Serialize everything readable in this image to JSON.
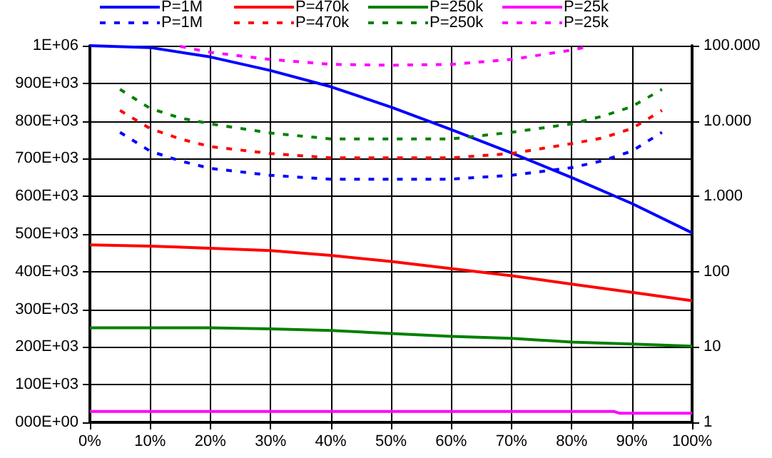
{
  "chart_data": {
    "type": "line",
    "x": [
      0,
      10,
      20,
      30,
      40,
      50,
      60,
      70,
      80,
      90,
      100
    ],
    "series": [
      {
        "name": "P=1M",
        "color": "#0000ff",
        "line_style": "solid",
        "values": [
          1000000,
          995000,
          970000,
          934000,
          891000,
          837000,
          777000,
          715000,
          650000,
          581000,
          503000
        ]
      },
      {
        "name": "P=470k",
        "color": "#ff0000",
        "line_style": "solid",
        "values": [
          471000,
          468000,
          462000,
          456000,
          443000,
          427000,
          408000,
          389000,
          367000,
          345000,
          323000
        ]
      },
      {
        "name": "P=250k",
        "color": "#008000",
        "line_style": "solid",
        "values": [
          251000,
          251000,
          251000,
          248000,
          244000,
          236000,
          228000,
          223000,
          213000,
          208000,
          202000
        ]
      },
      {
        "name": "P=25k",
        "color": "#ff00ff",
        "line_style": "solid",
        "x": [
          0,
          87,
          88,
          100
        ],
        "values": [
          29000,
          29000,
          24000,
          24000
        ]
      },
      {
        "name": "P=1M",
        "color": "#0000ff",
        "line_style": "dashed",
        "axis": "y2",
        "x": [
          5,
          10,
          15,
          20,
          30,
          40,
          50,
          60,
          70,
          80,
          85,
          90,
          95
        ],
        "values": [
          7080,
          3980,
          2950,
          2350,
          1900,
          1690,
          1690,
          1690,
          1900,
          2400,
          2950,
          3980,
          7080
        ]
      },
      {
        "name": "P=470k",
        "color": "#ff0000",
        "line_style": "dashed",
        "axis": "y2",
        "x": [
          5,
          10,
          15,
          20,
          30,
          40,
          50,
          60,
          70,
          80,
          85,
          90,
          95
        ],
        "values": [
          13800,
          7940,
          5780,
          4570,
          3700,
          3240,
          3240,
          3240,
          3700,
          5000,
          5920,
          7940,
          13800
        ]
      },
      {
        "name": "P=250k",
        "color": "#008000",
        "line_style": "dashed",
        "axis": "y2",
        "x": [
          5,
          10,
          15,
          20,
          30,
          40,
          50,
          60,
          70,
          80,
          85,
          90,
          95
        ],
        "values": [
          26300,
          14700,
          10960,
          9170,
          6920,
          5780,
          5780,
          5780,
          7080,
          9170,
          11500,
          15500,
          26300
        ]
      },
      {
        "name": "P=25k",
        "color": "#ff00ff",
        "line_style": "dashed",
        "axis": "y2",
        "x": [
          15,
          20,
          30,
          40,
          50,
          60,
          70,
          80,
          83
        ],
        "values": [
          98000,
          81500,
          65600,
          56500,
          55000,
          56500,
          65600,
          87500,
          98000
        ]
      }
    ],
    "xlim": [
      0,
      100
    ],
    "xticks": [
      {
        "value": 0,
        "label": "0%"
      },
      {
        "value": 10,
        "label": "10%"
      },
      {
        "value": 20,
        "label": "20%"
      },
      {
        "value": 30,
        "label": "30%"
      },
      {
        "value": 40,
        "label": "40%"
      },
      {
        "value": 50,
        "label": "50%"
      },
      {
        "value": 60,
        "label": "60%"
      },
      {
        "value": 70,
        "label": "70%"
      },
      {
        "value": 80,
        "label": "80%"
      },
      {
        "value": 90,
        "label": "90%"
      },
      {
        "value": 100,
        "label": "100%"
      }
    ],
    "ylim": [
      0,
      1000000
    ],
    "yticks": [
      {
        "value": 0,
        "label": "000E+00"
      },
      {
        "value": 100000,
        "label": "100E+03"
      },
      {
        "value": 200000,
        "label": "200E+03"
      },
      {
        "value": 300000,
        "label": "300E+03"
      },
      {
        "value": 400000,
        "label": "400E+03"
      },
      {
        "value": 500000,
        "label": "500E+03"
      },
      {
        "value": 600000,
        "label": "600E+03"
      },
      {
        "value": 700000,
        "label": "700E+03"
      },
      {
        "value": 800000,
        "label": "800E+03"
      },
      {
        "value": 900000,
        "label": "900E+03"
      },
      {
        "value": 1000000,
        "label": "1E+06"
      }
    ],
    "y2lim": [
      1,
      100000
    ],
    "y2ticks": [
      {
        "value": 1,
        "label": "1"
      },
      {
        "value": 10,
        "label": "10"
      },
      {
        "value": 100,
        "label": "100"
      },
      {
        "value": 1000,
        "label": "1.000"
      },
      {
        "value": 10000,
        "label": "10.000"
      },
      {
        "value": 100000,
        "label": "100.000"
      }
    ],
    "log": "y2",
    "grid": true,
    "legend": "top",
    "marker": "none"
  }
}
